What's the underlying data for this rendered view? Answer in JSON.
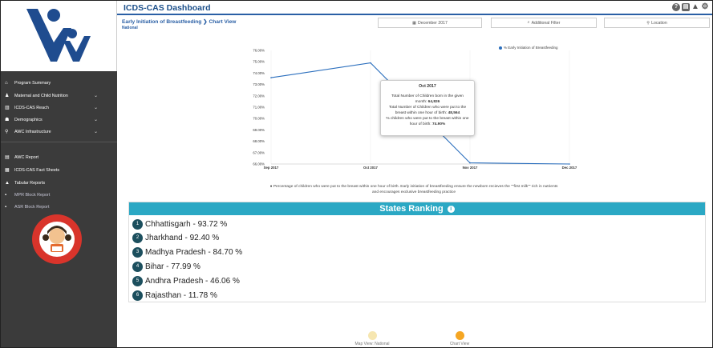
{
  "header": {
    "title": "ICDS-CAS Dashboard"
  },
  "sidebar": {
    "items": [
      {
        "label": "Program Summary",
        "icon": "home-icon",
        "chev": false
      },
      {
        "label": "Maternal and Child Nutrition",
        "icon": "person-icon",
        "chev": true
      },
      {
        "label": "ICDS-CAS Reach",
        "icon": "bar-chart-icon",
        "chev": true
      },
      {
        "label": "Demographics",
        "icon": "group-icon",
        "chev": true
      },
      {
        "label": "AWC Infrastructure",
        "icon": "pin-icon",
        "chev": true
      },
      {
        "label": "AWC Report",
        "icon": "report-icon",
        "chev": false
      },
      {
        "label": "ICDS-CAS Fact Sheets",
        "icon": "sheet-icon",
        "chev": false
      },
      {
        "label": "Tabular Reports",
        "icon": "table-icon",
        "chev": false
      },
      {
        "label": "MPR Block Report",
        "icon": "block-icon",
        "chev": false
      },
      {
        "label": "ASR Block Report",
        "icon": "block-icon",
        "chev": false
      }
    ]
  },
  "breadcrumb": {
    "title": "Early Initiation of Breastfeeding ❯ Chart View",
    "sub": "National"
  },
  "filters": {
    "date": "December 2017",
    "additional": "Additional Filter",
    "location": "Location"
  },
  "chart_data": {
    "type": "line",
    "categories": [
      "Sep 2017",
      "Oct 2017",
      "Nov 2017",
      "Dec 2017"
    ],
    "series": [
      {
        "name": "% Early Initiation of Breastfeeding",
        "values": [
          73.6,
          74.9,
          66.1,
          66.0
        ]
      }
    ],
    "y_ticks": [
      "66.00%",
      "67.00%",
      "68.00%",
      "69.00%",
      "70.00%",
      "71.00%",
      "72.00%",
      "73.00%",
      "74.00%",
      "75.00%",
      "76.00%"
    ],
    "ylim": [
      66,
      76
    ],
    "color": "#2a6ebd",
    "grid": true,
    "legend": "top-right"
  },
  "tooltip": {
    "title": "Oct 2017",
    "line1": "Total Number of Children born in the given month: ",
    "val1": "64,826",
    "line2": "Total Number of Children who were put to the breast within one hour of birth: ",
    "val2": "48,564",
    "line3": "% children who were put to the breast within one hour of birth: ",
    "val3": "74.90%"
  },
  "info_note": "Percentage of children who were put to the breast within one hour of birth. Early initiation of breastfeeding ensure the newborn recieves the \"\"first milk\"\" rich in nutrients and encourages exclusive breastfeeding practice",
  "ranking": {
    "title": "States Ranking",
    "rows": [
      {
        "num": "1",
        "text": "Chhattisgarh - 93.72 %"
      },
      {
        "num": "2",
        "text": "Jharkhand - 92.40 %"
      },
      {
        "num": "3",
        "text": "Madhya Pradesh - 84.70 %"
      },
      {
        "num": "4",
        "text": "Bihar - 77.99 %"
      },
      {
        "num": "5",
        "text": "Andhra Pradesh - 46.06 %"
      },
      {
        "num": "6",
        "text": "Rajasthan - 11.78 %"
      }
    ]
  },
  "toggles": {
    "map": "Map View: National",
    "chart": "Chart View"
  }
}
